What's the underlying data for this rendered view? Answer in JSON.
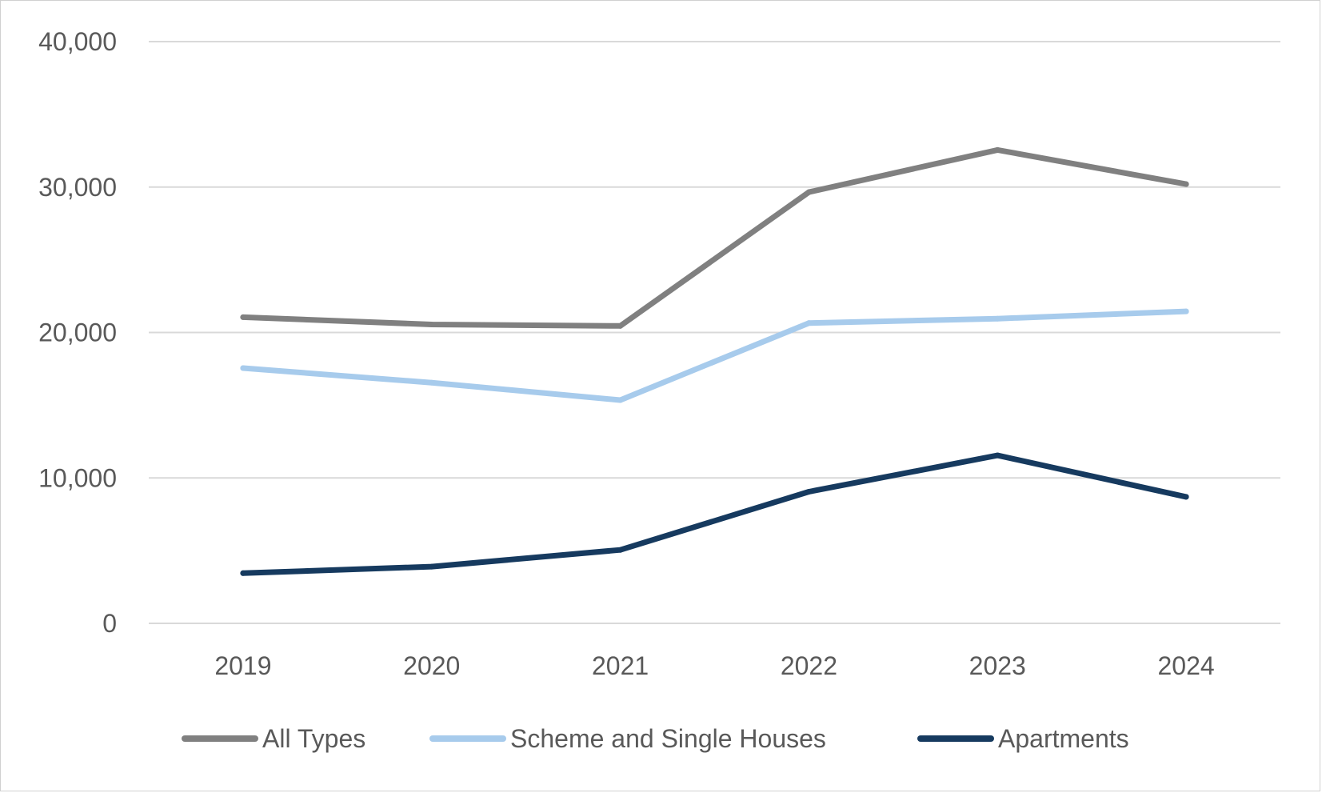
{
  "chart_data": {
    "type": "line",
    "title": "",
    "xlabel": "",
    "ylabel": "",
    "categories": [
      "2019",
      "2020",
      "2021",
      "2022",
      "2023",
      "2024"
    ],
    "ylim": [
      0,
      40000
    ],
    "yticks": [
      0,
      10000,
      20000,
      30000,
      40000
    ],
    "ytick_labels": [
      "0",
      "10,000",
      "20,000",
      "30,000",
      "40,000"
    ],
    "grid": true,
    "legend_position": "bottom",
    "series": [
      {
        "name": "All Types",
        "color": "#808080",
        "values": [
          21050,
          20550,
          20450,
          29650,
          32550,
          30200
        ]
      },
      {
        "name": "Scheme and Single Houses",
        "color": "#A7CBEC",
        "values": [
          17550,
          16550,
          15350,
          20650,
          20950,
          21450
        ]
      },
      {
        "name": "Apartments",
        "color": "#163A5F",
        "values": [
          3450,
          3900,
          5050,
          9050,
          11550,
          8700
        ]
      }
    ]
  }
}
